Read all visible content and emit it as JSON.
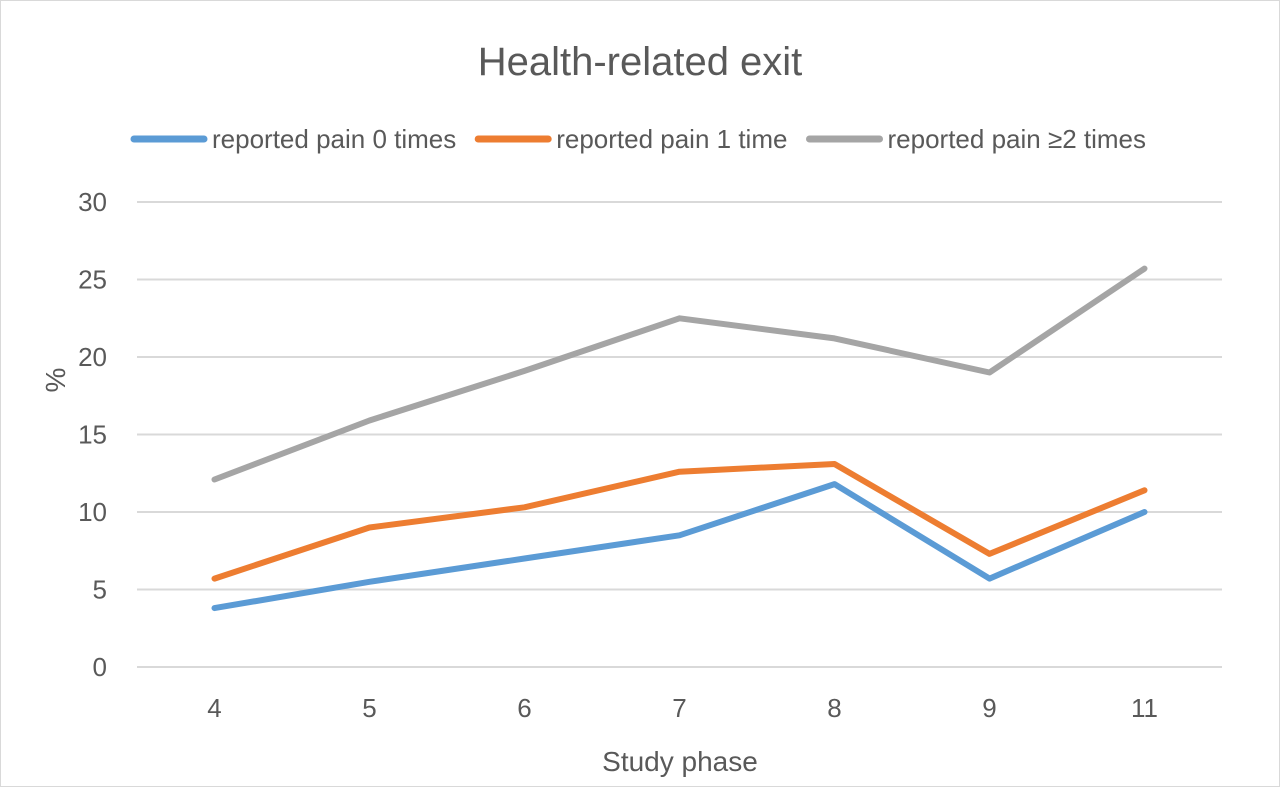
{
  "chart_data": {
    "type": "line",
    "title": "Health-related exit",
    "xlabel": "Study phase",
    "ylabel": "%",
    "categories": [
      "4",
      "5",
      "6",
      "7",
      "8",
      "9",
      "11"
    ],
    "ylim": [
      0,
      30
    ],
    "yticks": [
      0,
      5,
      10,
      15,
      20,
      25,
      30
    ],
    "grid": true,
    "legend_position": "top",
    "series": [
      {
        "name": "reported pain 0 times",
        "color": "#5b9bd5",
        "values": [
          3.8,
          5.5,
          7.0,
          8.5,
          11.8,
          5.7,
          10.0
        ]
      },
      {
        "name": "reported pain 1 time",
        "color": "#ed7d31",
        "values": [
          5.7,
          9.0,
          10.3,
          12.6,
          13.1,
          7.3,
          11.4
        ]
      },
      {
        "name": "reported pain ≥2 times",
        "color": "#a5a5a5",
        "values": [
          12.1,
          15.9,
          19.1,
          22.5,
          21.2,
          19.0,
          25.7
        ]
      }
    ]
  }
}
